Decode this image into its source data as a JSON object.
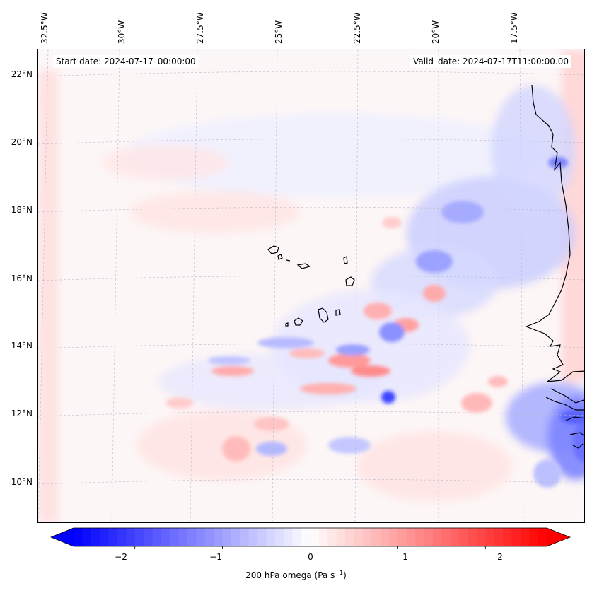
{
  "header": {
    "start_date": "Start date: 2024-07-17_00:00:00",
    "valid_date": "Valid_date: 2024-07-17T11:00:00.00"
  },
  "lon_labels": [
    "32.5°W",
    "30°W",
    "27.5°W",
    "25°W",
    "22.5°W",
    "20°W",
    "17.5°W"
  ],
  "lat_labels": [
    "22°N",
    "20°N",
    "18°N",
    "16°N",
    "14°N",
    "12°N",
    "10°N"
  ],
  "colorbar": {
    "ticks": [
      "−2",
      "−1",
      "0",
      "1",
      "2"
    ],
    "label_main": "200 hPa omega (Pa s",
    "label_sup": "−1",
    "label_end": ")",
    "vmin": -2.7,
    "vmax": 2.7,
    "negative_color": "#0000ff",
    "positive_color": "#ff0000"
  },
  "colors": {
    "coastline": "#000000",
    "gridline": "#b0b0c8",
    "background": "#fbfbff"
  }
}
